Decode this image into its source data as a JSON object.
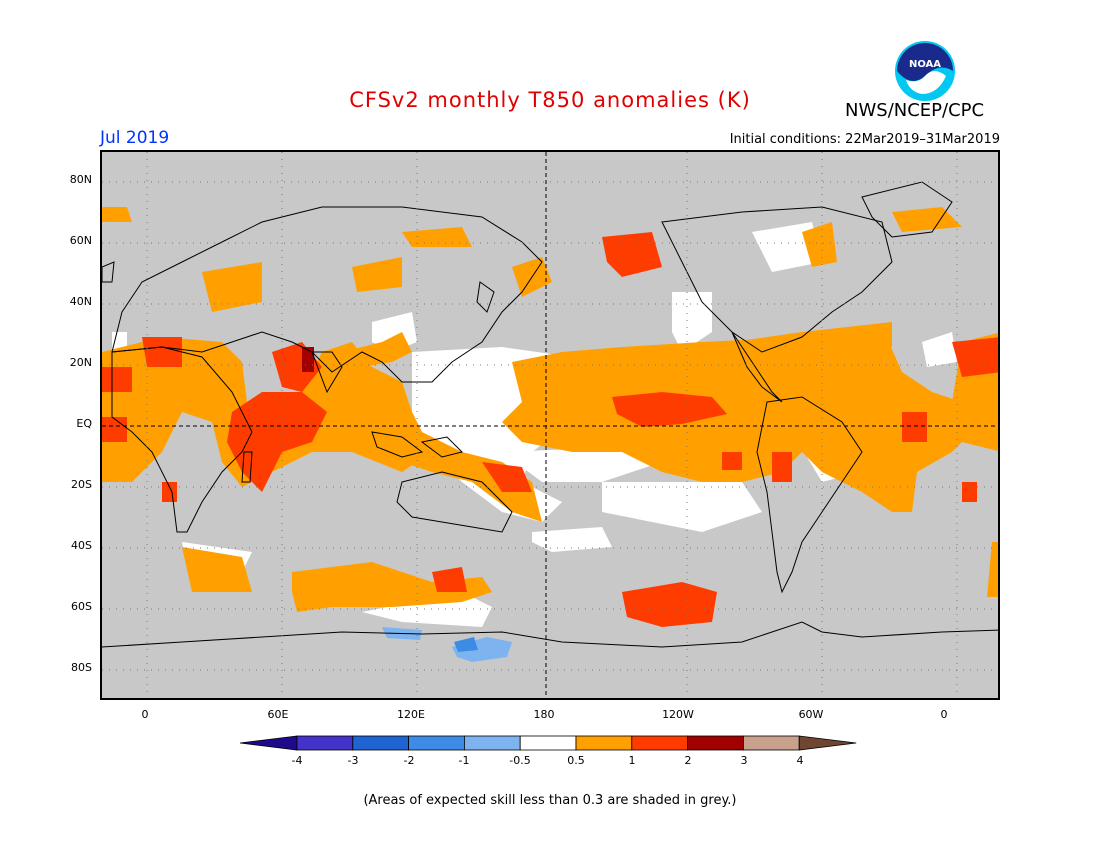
{
  "title": "CFSv2 monthly T850 anomalies (K)",
  "month": "Jul 2019",
  "initial_conditions": "Initial conditions: 22Mar2019–31Mar2019",
  "agency": "NWS/NCEP/CPC",
  "logo_text": "NOAA",
  "note": "(Areas of expected skill less than 0.3 are shaded in grey.)",
  "lat_labels": [
    "80N",
    "60N",
    "40N",
    "20N",
    "EQ",
    "20S",
    "40S",
    "60S",
    "80S"
  ],
  "lon_labels": [
    "0",
    "60E",
    "120E",
    "180",
    "120W",
    "60W",
    "0"
  ],
  "colorbar": {
    "ticks": [
      "-4",
      "-3",
      "-2",
      "-1",
      "-0.5",
      "0.5",
      "1",
      "2",
      "3",
      "4"
    ],
    "colors": [
      "#1e0a8a",
      "#4433c9",
      "#1e64d2",
      "#3c8ce6",
      "#7db4f0",
      "#ffffff",
      "#ffa000",
      "#ff3c00",
      "#a00000",
      "#c8a08c",
      "#6e4632"
    ]
  },
  "palette": {
    "grey": "#c8c8c8",
    "white": "#ffffff",
    "orange": "#ffa000",
    "red": "#ff3c00",
    "darkred": "#a00000",
    "lightblue": "#7db4f0",
    "blue": "#3c8ce6"
  }
}
